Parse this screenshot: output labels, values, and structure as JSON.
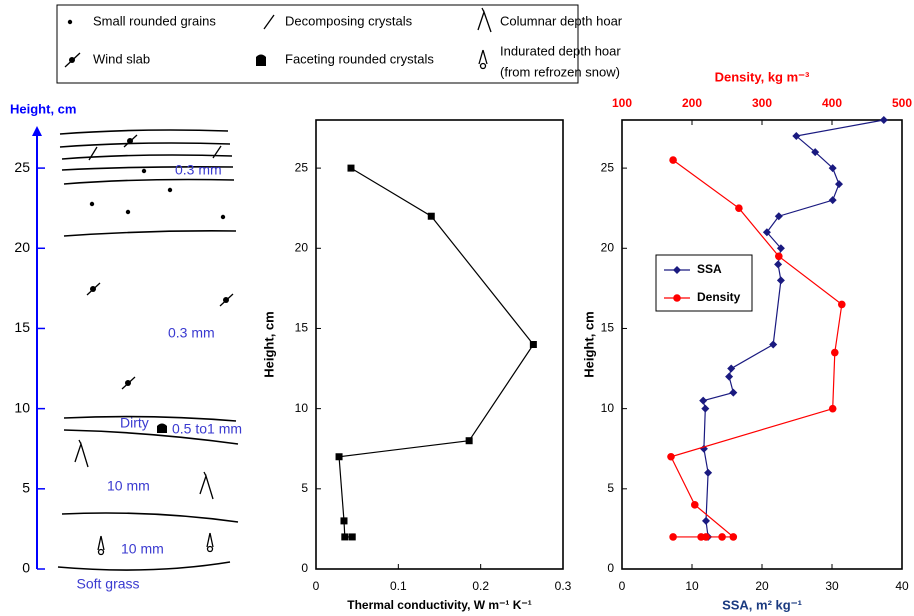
{
  "legend": [
    [
      "Small rounded grains"
    ],
    [
      "Decomposing crystals"
    ],
    [
      "Columnar depth hoar"
    ],
    [
      "Wind slab"
    ],
    [
      "Faceting rounded crystals"
    ],
    [
      "Indurated depth hoar",
      "(from refrozen snow)"
    ]
  ],
  "chart_data": [
    {
      "type": "stratigraphy",
      "y_label": "Height, cm",
      "color": "#0000ff",
      "ylim": [
        0,
        27.5
      ],
      "yticks": [
        0,
        5,
        10,
        15,
        20,
        25
      ],
      "annotations": [
        "0.3 mm",
        "0.3 mm",
        "Dirty",
        "0.5 to1 mm",
        "10 mm",
        "10 mm",
        "Soft grass"
      ]
    },
    {
      "type": "line",
      "x_label": "Thermal conductivity, W m⁻¹ K⁻¹",
      "y_label": "Height, cm",
      "xlim": [
        0,
        0.3
      ],
      "xticks": [
        0,
        0.1,
        0.2,
        0.3
      ],
      "ylim": [
        0,
        28
      ],
      "yticks": [
        0,
        5,
        10,
        15,
        20,
        25
      ],
      "series": [
        {
          "name": null,
          "color": "#000000",
          "marker": "square",
          "x": [
            0.0425,
            0.14,
            0.264,
            0.186,
            0.028,
            0.034,
            0.035,
            0.044
          ],
          "y": [
            25,
            22,
            14,
            8,
            7,
            3,
            2,
            2
          ]
        }
      ]
    },
    {
      "type": "line",
      "x_label": "SSA, m² kg⁻¹",
      "x2_label": "Density, kg m⁻³",
      "y_label": "Height, cm",
      "xlim": [
        0,
        40
      ],
      "xticks": [
        0,
        10,
        20,
        30,
        40
      ],
      "x2lim": [
        100,
        500
      ],
      "x2ticks": [
        100,
        200,
        300,
        400,
        500
      ],
      "ylim": [
        0,
        28
      ],
      "yticks": [
        0,
        5,
        10,
        15,
        20,
        25
      ],
      "x2_color": "#ff0000",
      "series": [
        {
          "name": "SSA",
          "color": "#1a1a80",
          "marker": "diamond",
          "axis": "x",
          "x": [
            37.4,
            24.9,
            27.6,
            30.1,
            31,
            30.1,
            22.4,
            20.7,
            22.7,
            22.3,
            22.7,
            21.6,
            15.6,
            15.3,
            15.9,
            11.6,
            11.9,
            11.7,
            12.3,
            12,
            12.3
          ],
          "y": [
            28,
            27,
            26,
            25,
            24,
            23,
            22,
            21,
            20,
            19,
            18,
            14,
            12.5,
            12,
            11,
            10.5,
            10,
            7.5,
            6,
            3,
            2
          ]
        },
        {
          "name": "Density",
          "color": "#ff0000",
          "marker": "circle",
          "axis": "x2",
          "x": [
            173,
            267,
            324,
            414,
            404,
            401,
            170,
            204,
            259,
            243,
            220,
            213,
            173
          ],
          "y": [
            25.5,
            22.5,
            19.5,
            16.5,
            13.5,
            10,
            7,
            4,
            2,
            2,
            2,
            2,
            2
          ]
        }
      ]
    }
  ]
}
